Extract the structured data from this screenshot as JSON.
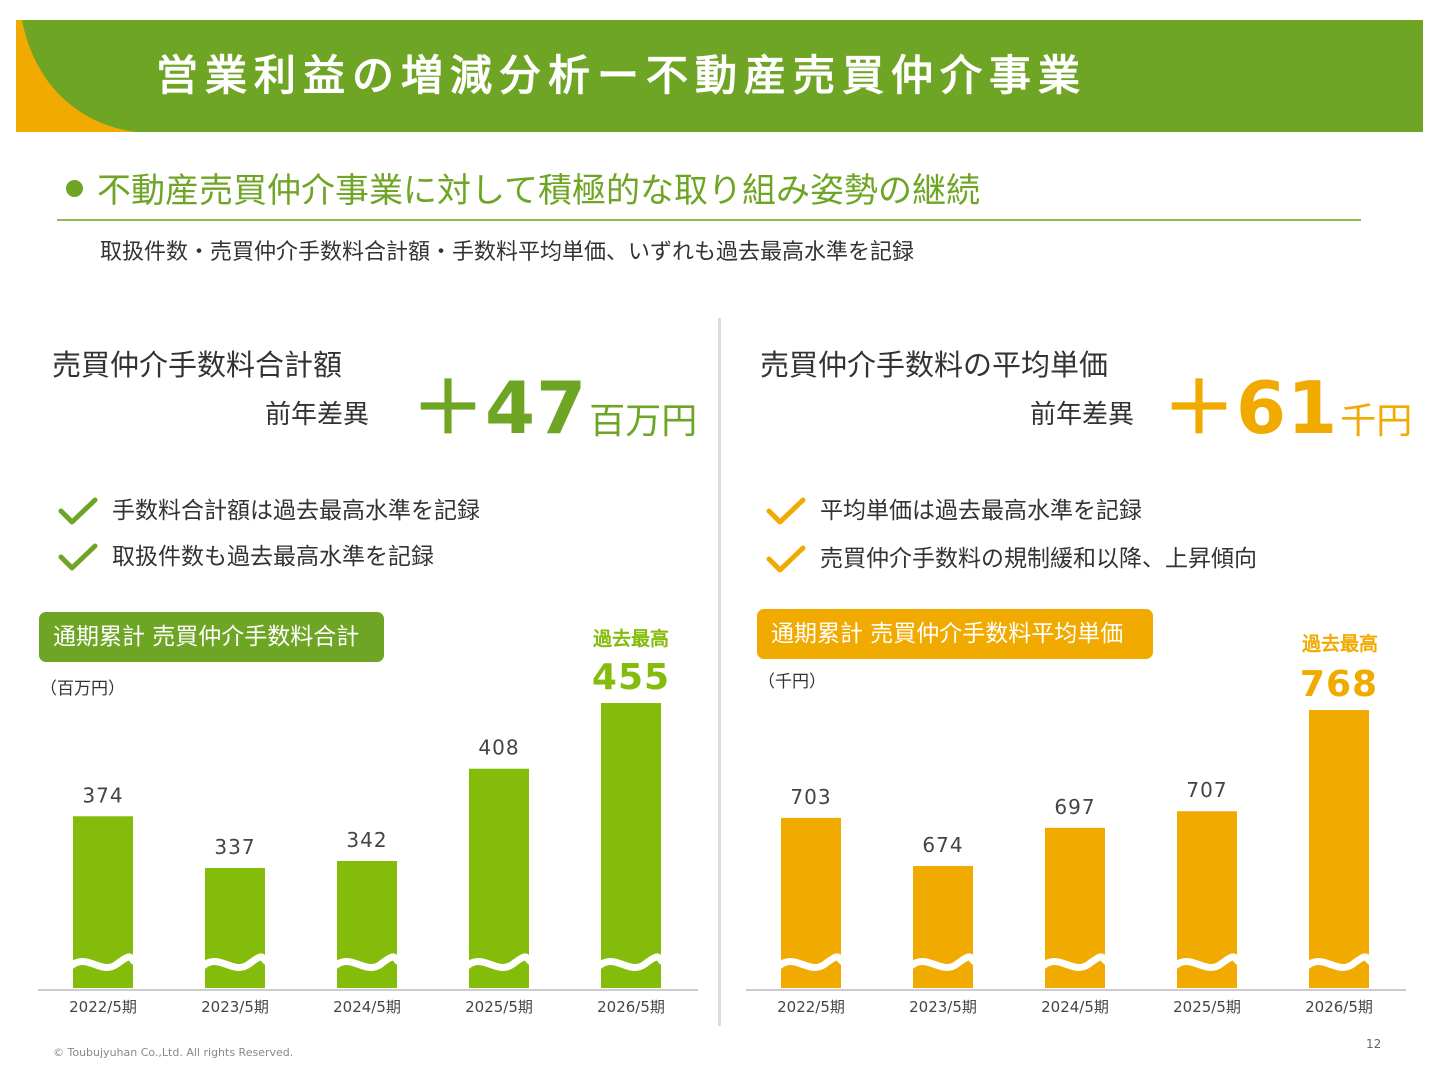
{
  "header": {
    "title": "営業利益の増減分析ー不動産売買仲介事業"
  },
  "headline": "不動産売買仲介事業に対して積極的な取り組み姿勢の継続",
  "subheadline": "取扱件数・売買仲介手数料合計額・手数料平均単価、いずれも過去最高水準を記録",
  "colors": {
    "green": "#84bc0b",
    "orange": "#f0aa00",
    "banner": "#6fa525"
  },
  "left_panel": {
    "title": "売買仲介手数料合計額",
    "yoy_label": "前年差異",
    "yoy_value": "＋47",
    "yoy_unit": "百万円",
    "checks": [
      "手数料合計額は過去最高水準を記録",
      "取扱件数も過去最高水準を記録"
    ],
    "chart_title": "通期累計 売買仲介手数料合計",
    "unit_label": "（百万円）",
    "record_label": "過去最高"
  },
  "right_panel": {
    "title": "売買仲介手数料の平均単価",
    "yoy_label": "前年差異",
    "yoy_value": "＋61",
    "yoy_unit": "千円",
    "checks": [
      "平均単価は過去最高水準を記録",
      "売買仲介手数料の規制緩和以降、上昇傾向"
    ],
    "chart_title": "通期累計 売買仲介手数料平均単価",
    "unit_label": "（千円）",
    "record_label": "過去最高"
  },
  "chart_data": [
    {
      "type": "bar",
      "title": "通期累計 売買仲介手数料合計",
      "categories": [
        "2022/5期",
        "2023/5期",
        "2024/5期",
        "2025/5期",
        "2026/5期"
      ],
      "values": [
        374,
        337,
        342,
        408,
        455
      ],
      "ylabel": "（百万円）",
      "axis_break": true,
      "highlight_index": 4,
      "color": "#84bc0b"
    },
    {
      "type": "bar",
      "title": "通期累計 売買仲介手数料平均単価",
      "categories": [
        "2022/5期",
        "2023/5期",
        "2024/5期",
        "2025/5期",
        "2026/5期"
      ],
      "values": [
        703,
        674,
        697,
        707,
        768
      ],
      "ylabel": "（千円）",
      "axis_break": true,
      "highlight_index": 4,
      "color": "#f0aa00"
    }
  ],
  "footer": {
    "copyright": "© Toubujyuhan Co.,Ltd. All rights Reserved.",
    "page_number": "12"
  }
}
